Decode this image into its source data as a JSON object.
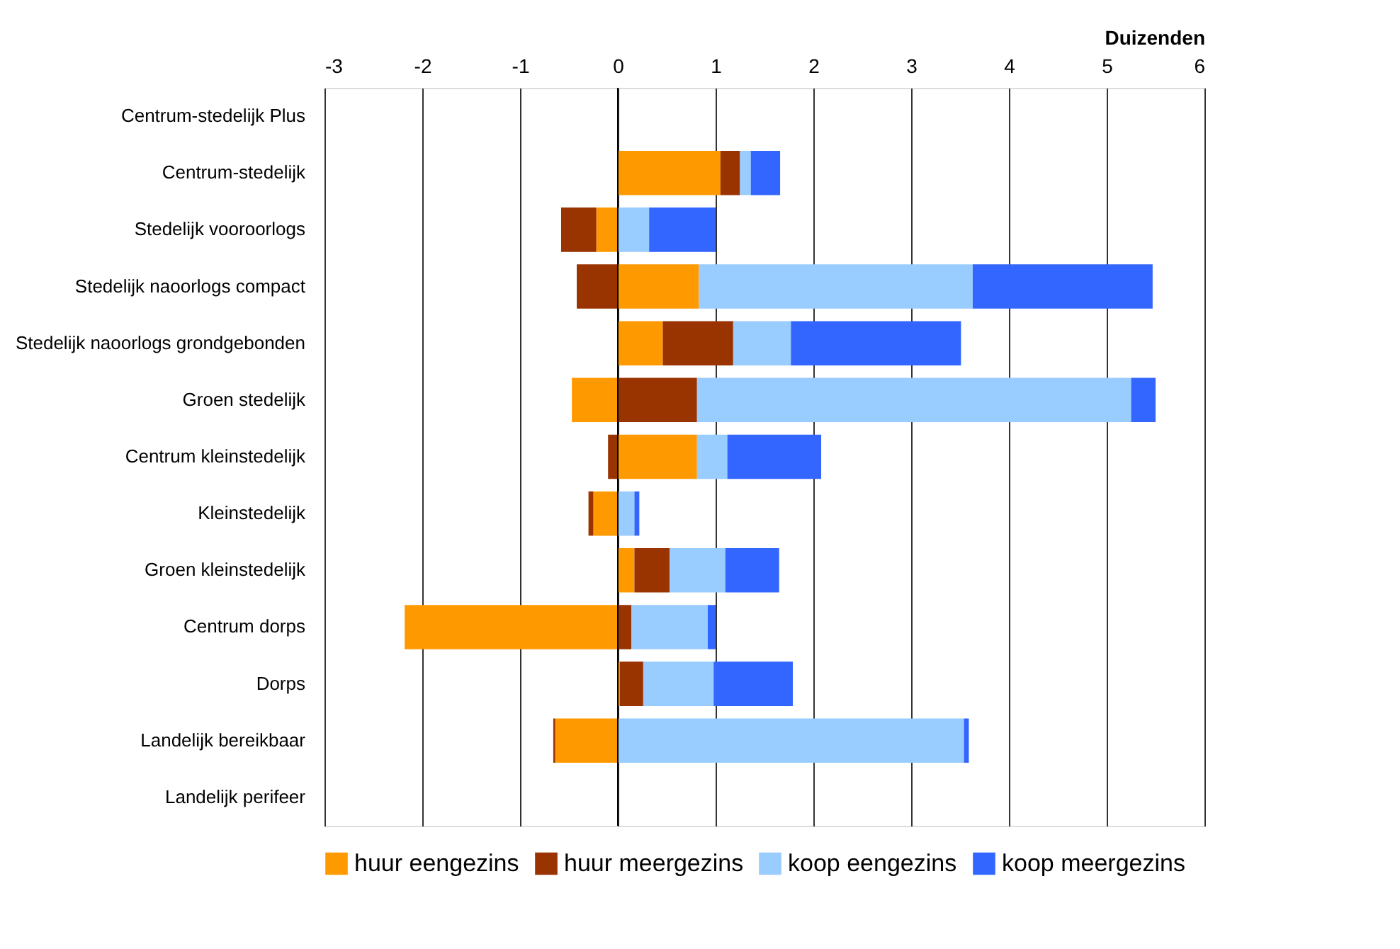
{
  "chart_data": {
    "type": "bar",
    "orientation": "horizontal",
    "stacked": true,
    "xlabel": "Duizenden",
    "categories": [
      "Centrum-stedelijk Plus",
      "Centrum-stedelijk",
      "Stedelijk vooroorlogs",
      "Stedelijk naoorlogs compact",
      "Stedelijk naoorlogs grondgebonden",
      "Groen stedelijk",
      "Centrum kleinstedelijk",
      "Kleinstedelijk",
      "Groen kleinstedelijk",
      "Centrum dorps",
      "Dorps",
      "Landelijk bereikbaar",
      "Landelijk perifeer"
    ],
    "series": [
      {
        "name": "huur eengezins",
        "color": "#ff9900",
        "values": [
          null,
          1.05,
          -0.22,
          0.83,
          0.46,
          -0.47,
          0.81,
          -0.25,
          0.17,
          -2.18,
          0.02,
          -0.64,
          null
        ]
      },
      {
        "name": "huur meergezins",
        "color": "#993300",
        "values": [
          null,
          0.2,
          -0.36,
          -0.42,
          0.72,
          0.81,
          -0.1,
          -0.05,
          0.36,
          0.14,
          0.24,
          -0.02,
          null
        ]
      },
      {
        "name": "koop eengezins",
        "color": "#99ccff",
        "values": [
          null,
          0.11,
          0.32,
          2.8,
          0.59,
          4.44,
          0.31,
          0.17,
          0.57,
          0.78,
          0.72,
          3.54,
          null
        ]
      },
      {
        "name": "koop meergezins",
        "color": "#3366ff",
        "values": [
          null,
          0.3,
          0.68,
          1.84,
          1.74,
          0.25,
          0.96,
          0.05,
          0.55,
          0.08,
          0.81,
          0.05,
          null
        ]
      }
    ],
    "xlim": [
      -3,
      6
    ],
    "xticks": [
      -3,
      -2,
      -1,
      0,
      1,
      2,
      3,
      4,
      5,
      6
    ],
    "grid": "x",
    "legend": "bottom"
  }
}
